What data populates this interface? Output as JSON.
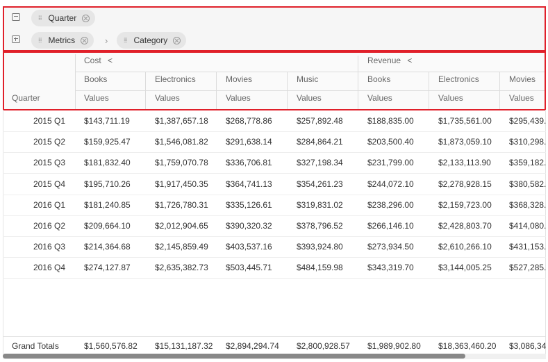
{
  "filters": {
    "rows_zone": [
      {
        "label": "Quarter"
      }
    ],
    "columns_zone": [
      {
        "label": "Metrics"
      },
      {
        "label": "Category"
      }
    ]
  },
  "header": {
    "row_field": "Quarter",
    "measures": [
      {
        "label": "Cost",
        "collapse": "<"
      },
      {
        "label": "Revenue",
        "collapse": "<"
      }
    ],
    "categories": [
      "Books",
      "Electronics",
      "Movies",
      "Music",
      "Books",
      "Electronics",
      "Movies"
    ],
    "value_label": "Values"
  },
  "rows": [
    {
      "label": "2015 Q1",
      "values": [
        "$143,711.19",
        "$1,387,657.18",
        "$268,778.86",
        "$257,892.48",
        "$188,835.00",
        "$1,735,561.00",
        "$295,439."
      ]
    },
    {
      "label": "2015 Q2",
      "values": [
        "$159,925.47",
        "$1,546,081.82",
        "$291,638.14",
        "$284,864.21",
        "$203,500.40",
        "$1,873,059.10",
        "$310,298."
      ]
    },
    {
      "label": "2015 Q3",
      "values": [
        "$181,832.40",
        "$1,759,070.78",
        "$336,706.81",
        "$327,198.34",
        "$231,799.00",
        "$2,133,113.90",
        "$359,182."
      ]
    },
    {
      "label": "2015 Q4",
      "values": [
        "$195,710.26",
        "$1,917,450.35",
        "$364,741.13",
        "$354,261.23",
        "$244,072.10",
        "$2,278,928.15",
        "$380,582."
      ]
    },
    {
      "label": "2016 Q1",
      "values": [
        "$181,240.85",
        "$1,726,780.31",
        "$335,126.61",
        "$319,831.02",
        "$238,296.00",
        "$2,159,723.00",
        "$368,328."
      ]
    },
    {
      "label": "2016 Q2",
      "values": [
        "$209,664.10",
        "$2,012,904.65",
        "$390,320.32",
        "$378,796.52",
        "$266,146.10",
        "$2,428,803.70",
        "$414,080."
      ]
    },
    {
      "label": "2016 Q3",
      "values": [
        "$214,364.68",
        "$2,145,859.49",
        "$403,537.16",
        "$393,924.80",
        "$273,934.50",
        "$2,610,266.10",
        "$431,153."
      ]
    },
    {
      "label": "2016 Q4",
      "values": [
        "$274,127.87",
        "$2,635,382.73",
        "$503,445.71",
        "$484,159.98",
        "$343,319.70",
        "$3,144,005.25",
        "$527,285."
      ]
    }
  ],
  "grand_totals": {
    "label": "Grand Totals",
    "values": [
      "$1,560,576.82",
      "$15,131,187.32",
      "$2,894,294.74",
      "$2,800,928.57",
      "$1,989,902.80",
      "$18,363,460.20",
      "$3,086,34"
    ]
  },
  "colors": {
    "highlight": "#e0202a",
    "chip": "#e6e6e6"
  }
}
